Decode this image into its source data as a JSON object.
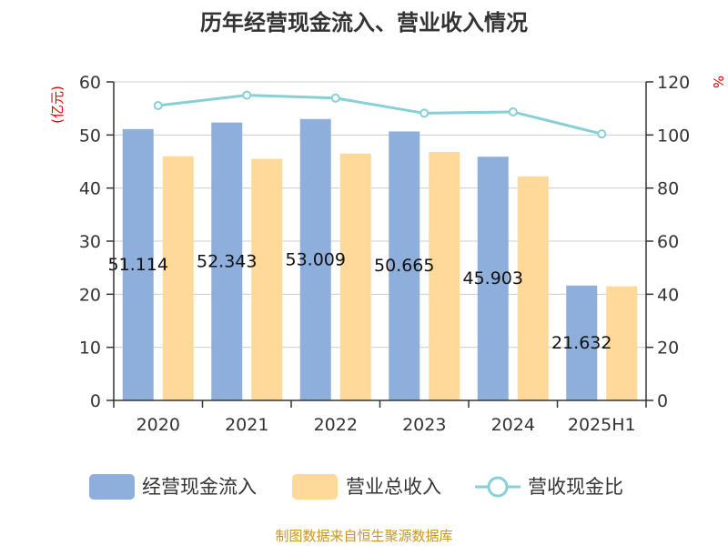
{
  "chart_data": {
    "type": "bar",
    "title": "历年经营现金流入、营业收入情况",
    "categories": [
      "2020",
      "2021",
      "2022",
      "2023",
      "2024",
      "2025H1"
    ],
    "y_left": {
      "unit": "(亿元)",
      "ylim": [
        0,
        60
      ],
      "ticks": [
        0,
        10,
        20,
        30,
        40,
        50,
        60
      ]
    },
    "y_right": {
      "unit": "%",
      "ylim": [
        0,
        120
      ],
      "ticks": [
        0,
        20,
        40,
        60,
        80,
        100,
        120
      ]
    },
    "series": [
      {
        "name": "经营现金流入",
        "type": "bar",
        "axis": "left",
        "color": "#8eaedb",
        "values": [
          51.114,
          52.343,
          53.009,
          50.665,
          45.903,
          21.632
        ],
        "labels": [
          "51.114",
          "52.343",
          "53.009",
          "50.665",
          "45.903",
          "21.632"
        ]
      },
      {
        "name": "营业总收入",
        "type": "bar",
        "axis": "left",
        "color": "#ffd99a",
        "values": [
          46.0,
          45.5,
          46.5,
          46.8,
          42.2,
          21.5
        ]
      },
      {
        "name": "营收现金比",
        "type": "line",
        "axis": "right",
        "color": "#86d0d6",
        "values": [
          111.1,
          115.0,
          113.9,
          108.2,
          108.7,
          100.4
        ]
      }
    ],
    "grid": true,
    "legend_position": "bottom"
  },
  "footer": {
    "source": "制图数据来自恒生聚源数据库"
  }
}
